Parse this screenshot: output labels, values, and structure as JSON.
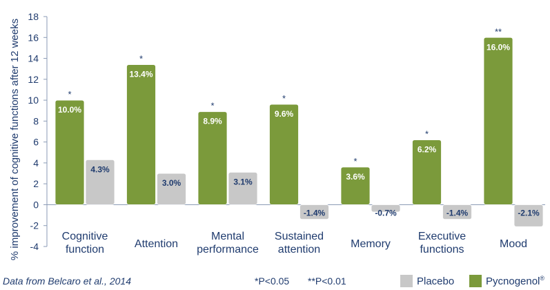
{
  "chart_data": {
    "type": "bar",
    "title": "",
    "xlabel": "",
    "ylabel": "% improvement of cognitive functions after 12 weeks",
    "ylim": [
      -4,
      18
    ],
    "yticks": [
      "18",
      "16",
      "14",
      "12",
      "10",
      "8",
      "6",
      "4",
      "2",
      "0",
      "-2",
      "-4"
    ],
    "yticks_values": [
      18,
      16,
      14,
      12,
      10,
      8,
      6,
      4,
      2,
      0,
      -2,
      -4
    ],
    "categories": [
      [
        "Cognitive",
        "function"
      ],
      [
        "Attention"
      ],
      [
        "Mental",
        "performance"
      ],
      [
        "Sustained",
        "attention"
      ],
      [
        "Memory"
      ],
      [
        "Executive",
        "functions"
      ],
      [
        "Mood"
      ]
    ],
    "series": [
      {
        "name": "Pycnogenol®",
        "color": "#7b9a3b",
        "values": [
          10.0,
          13.4,
          8.9,
          9.6,
          3.6,
          6.2,
          16.0
        ],
        "labels": [
          "10.0%",
          "13.4%",
          "8.9%",
          "9.6%",
          "3.6%",
          "6.2%",
          "16.0%"
        ],
        "significance": [
          "*",
          "*",
          "*",
          "*",
          "*",
          "*",
          "**"
        ]
      },
      {
        "name": "Placebo",
        "color": "#c8c8c8",
        "values": [
          4.3,
          3.0,
          3.1,
          -1.4,
          -0.7,
          -1.4,
          -2.1
        ],
        "labels": [
          "4.3%",
          "3.0%",
          "3.1%",
          "-1.4%",
          "-0.7%",
          "-1.4%",
          "-2.1%"
        ]
      }
    ],
    "legend_position": "bottom-right"
  },
  "footer": {
    "source": "Data from Belcaro et al., 2014",
    "sig_p05": "*P<0.05",
    "sig_p01": "**P<0.01"
  },
  "legend": {
    "placebo": "Placebo",
    "pycnogenol": "Pycnogenol",
    "pycnogenol_sup": "®",
    "placebo_color": "#c8c8c8",
    "pycnogenol_color": "#7b9a3b"
  }
}
